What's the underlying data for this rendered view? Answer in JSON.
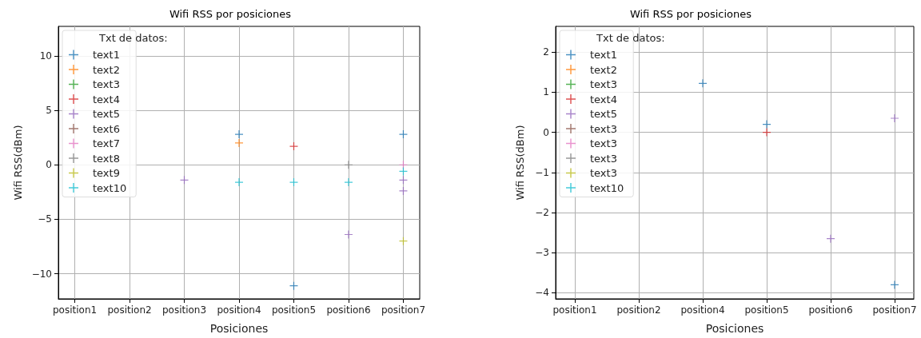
{
  "chart_data": [
    {
      "type": "scatter",
      "title": "Wifi RSS por posiciones",
      "xlabel": "Posiciones",
      "ylabel": "Wifi RSS(dBm)",
      "legend_title": "Txt de datos:",
      "categories": [
        "position1",
        "position2",
        "position3",
        "position4",
        "position5",
        "position6",
        "position7"
      ],
      "ylim": [
        -12.3,
        12.7
      ],
      "yticks": [
        -10,
        -5,
        0,
        5,
        10
      ],
      "grid": true,
      "legend": "top left",
      "marker": "cross",
      "series": [
        {
          "name": "text1",
          "color": "#1f77b4",
          "x": [
            "position4",
            "position5",
            "position7"
          ],
          "values": [
            2.8,
            -11.1,
            2.8
          ]
        },
        {
          "name": "text2",
          "color": "#ff7f0e",
          "x": [
            "position4"
          ],
          "values": [
            2.0
          ]
        },
        {
          "name": "text3",
          "color": "#2ca02c",
          "values": [
            null,
            null,
            null,
            null,
            null,
            null,
            null
          ]
        },
        {
          "name": "text4",
          "color": "#d62728",
          "x": [
            "position5"
          ],
          "values": [
            1.7
          ]
        },
        {
          "name": "text5",
          "color": "#9467bd",
          "x": [
            "position3",
            "position6",
            "position7",
            "position7"
          ],
          "values": [
            -1.4,
            -6.4,
            -1.4,
            -2.4
          ]
        },
        {
          "name": "text6",
          "color": "#8c564b",
          "values": [
            null,
            null,
            null,
            null,
            null,
            null,
            null
          ]
        },
        {
          "name": "text7",
          "color": "#e377c2",
          "x": [
            "position7"
          ],
          "values": [
            0.0
          ]
        },
        {
          "name": "text8",
          "color": "#7f7f7f",
          "x": [
            "position6"
          ],
          "values": [
            0.0
          ]
        },
        {
          "name": "text9",
          "color": "#bcbd22",
          "x": [
            "position7"
          ],
          "values": [
            -7.0
          ]
        },
        {
          "name": "text10",
          "color": "#17becf",
          "x": [
            "position4",
            "position5",
            "position6",
            "position7"
          ],
          "values": [
            -1.6,
            -1.6,
            -1.6,
            -0.6
          ]
        }
      ]
    },
    {
      "type": "scatter",
      "title": "Wifi RSS por posiciones",
      "xlabel": "Posiciones",
      "ylabel": "Wifi RSS(dBm)",
      "legend_title": "Txt de datos:",
      "categories": [
        "position1",
        "position2",
        "position4",
        "position5",
        "position6",
        "position7"
      ],
      "ylim": [
        -4.15,
        2.64
      ],
      "yticks": [
        -4,
        -3,
        -2,
        -1,
        0,
        1,
        2
      ],
      "grid": true,
      "legend": "top left",
      "marker": "cross",
      "series": [
        {
          "name": "text1",
          "color": "#1f77b4",
          "x": [
            "position4",
            "position5",
            "position7"
          ],
          "values": [
            1.22,
            0.2,
            -3.8
          ]
        },
        {
          "name": "text2",
          "color": "#ff7f0e",
          "values": [
            null,
            null,
            null,
            null,
            null,
            null
          ]
        },
        {
          "name": "text3",
          "color": "#2ca02c",
          "values": [
            null,
            null,
            null,
            null,
            null,
            null
          ]
        },
        {
          "name": "text4",
          "color": "#d62728",
          "x": [
            "position5"
          ],
          "values": [
            0.0
          ]
        },
        {
          "name": "text5",
          "color": "#9467bd",
          "x": [
            "position6",
            "position7"
          ],
          "values": [
            -2.65,
            0.35
          ]
        },
        {
          "name": "text3",
          "color": "#8c564b",
          "values": [
            null,
            null,
            null,
            null,
            null,
            null
          ]
        },
        {
          "name": "text3",
          "color": "#e377c2",
          "values": [
            null,
            null,
            null,
            null,
            null,
            null
          ]
        },
        {
          "name": "text3",
          "color": "#7f7f7f",
          "values": [
            null,
            null,
            null,
            null,
            null,
            null
          ]
        },
        {
          "name": "text3",
          "color": "#bcbd22",
          "values": [
            null,
            null,
            null,
            null,
            null,
            null
          ]
        },
        {
          "name": "text10",
          "color": "#17becf",
          "values": [
            null,
            null,
            null,
            null,
            null,
            null
          ]
        }
      ]
    }
  ]
}
